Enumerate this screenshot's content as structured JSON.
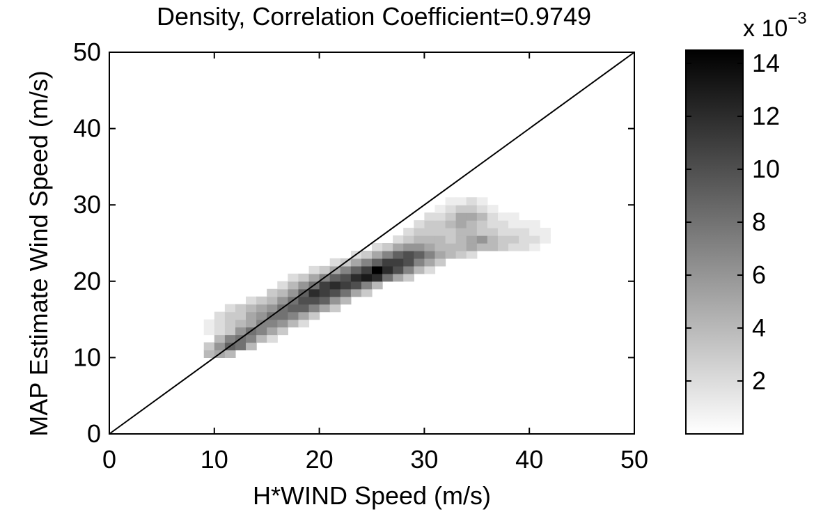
{
  "chart_data": {
    "type": "heatmap",
    "title": "Density, Correlation Coefficient=0.9749",
    "xlabel": "H*WIND Speed (m/s)",
    "ylabel": "MAP Estimate Wind Speed (m/s)",
    "xlim": [
      0,
      50
    ],
    "ylim": [
      0,
      50
    ],
    "xticks": [
      "0",
      "10",
      "20",
      "30",
      "40",
      "50"
    ],
    "yticks": [
      "0",
      "10",
      "20",
      "30",
      "40",
      "50"
    ],
    "reference_line": {
      "x": [
        0,
        50
      ],
      "y": [
        0,
        50
      ]
    },
    "colorbar": {
      "colormap": "gray-reversed",
      "min": 0,
      "max": 14.5,
      "ticks": [
        "2",
        "4",
        "6",
        "8",
        "10",
        "12",
        "14"
      ],
      "multiplier_text": "x 10",
      "multiplier_exponent": "−3"
    },
    "bin_size": 1,
    "cells": [
      [
        9,
        10,
        4
      ],
      [
        10,
        10,
        5
      ],
      [
        11,
        10,
        4
      ],
      [
        9,
        11,
        3
      ],
      [
        10,
        11,
        6
      ],
      [
        11,
        11,
        9
      ],
      [
        12,
        11,
        8
      ],
      [
        13,
        11,
        4
      ],
      [
        10,
        12,
        4
      ],
      [
        11,
        12,
        7
      ],
      [
        12,
        12,
        8
      ],
      [
        13,
        12,
        7
      ],
      [
        14,
        12,
        4
      ],
      [
        15,
        12,
        2
      ],
      [
        9,
        13,
        1
      ],
      [
        10,
        13,
        2
      ],
      [
        11,
        13,
        3
      ],
      [
        12,
        13,
        6
      ],
      [
        13,
        13,
        8
      ],
      [
        14,
        13,
        7
      ],
      [
        15,
        13,
        5
      ],
      [
        16,
        13,
        3
      ],
      [
        9,
        14,
        1
      ],
      [
        10,
        14,
        2
      ],
      [
        11,
        14,
        3
      ],
      [
        12,
        14,
        4
      ],
      [
        13,
        14,
        5
      ],
      [
        14,
        14,
        7
      ],
      [
        15,
        14,
        7
      ],
      [
        16,
        14,
        6
      ],
      [
        17,
        14,
        4
      ],
      [
        18,
        14,
        2
      ],
      [
        10,
        15,
        2
      ],
      [
        11,
        15,
        3
      ],
      [
        12,
        15,
        3
      ],
      [
        13,
        15,
        5
      ],
      [
        14,
        15,
        6
      ],
      [
        15,
        15,
        8
      ],
      [
        16,
        15,
        8
      ],
      [
        17,
        15,
        7
      ],
      [
        18,
        15,
        5
      ],
      [
        19,
        15,
        3
      ],
      [
        11,
        16,
        2
      ],
      [
        12,
        16,
        3
      ],
      [
        13,
        16,
        4
      ],
      [
        14,
        16,
        5
      ],
      [
        15,
        16,
        6
      ],
      [
        16,
        16,
        8
      ],
      [
        17,
        16,
        9
      ],
      [
        18,
        16,
        9
      ],
      [
        19,
        16,
        7
      ],
      [
        20,
        16,
        5
      ],
      [
        21,
        16,
        3
      ],
      [
        13,
        17,
        2
      ],
      [
        14,
        17,
        3
      ],
      [
        15,
        17,
        4
      ],
      [
        16,
        17,
        6
      ],
      [
        17,
        17,
        8
      ],
      [
        18,
        17,
        10
      ],
      [
        19,
        17,
        10
      ],
      [
        20,
        17,
        9
      ],
      [
        21,
        17,
        6
      ],
      [
        22,
        17,
        4
      ],
      [
        15,
        18,
        3
      ],
      [
        16,
        18,
        4
      ],
      [
        17,
        18,
        6
      ],
      [
        18,
        18,
        9
      ],
      [
        19,
        18,
        12
      ],
      [
        20,
        18,
        11
      ],
      [
        21,
        18,
        10
      ],
      [
        22,
        18,
        8
      ],
      [
        23,
        18,
        5
      ],
      [
        24,
        18,
        3
      ],
      [
        16,
        19,
        2
      ],
      [
        17,
        19,
        4
      ],
      [
        18,
        19,
        6
      ],
      [
        19,
        19,
        8
      ],
      [
        20,
        19,
        11
      ],
      [
        21,
        19,
        12
      ],
      [
        22,
        19,
        11
      ],
      [
        23,
        19,
        10
      ],
      [
        24,
        19,
        7
      ],
      [
        25,
        19,
        4
      ],
      [
        17,
        20,
        2
      ],
      [
        18,
        20,
        3
      ],
      [
        19,
        20,
        5
      ],
      [
        20,
        20,
        7
      ],
      [
        21,
        20,
        9
      ],
      [
        22,
        20,
        10
      ],
      [
        23,
        20,
        12
      ],
      [
        24,
        20,
        13
      ],
      [
        25,
        20,
        12
      ],
      [
        26,
        20,
        8
      ],
      [
        27,
        20,
        5
      ],
      [
        28,
        20,
        3
      ],
      [
        19,
        21,
        2
      ],
      [
        20,
        21,
        3
      ],
      [
        21,
        21,
        5
      ],
      [
        22,
        21,
        7
      ],
      [
        23,
        21,
        9
      ],
      [
        24,
        21,
        11
      ],
      [
        25,
        21,
        14.5
      ],
      [
        26,
        21,
        12
      ],
      [
        27,
        21,
        10
      ],
      [
        28,
        21,
        7
      ],
      [
        29,
        21,
        4
      ],
      [
        30,
        21,
        2
      ],
      [
        21,
        22,
        2
      ],
      [
        22,
        22,
        3
      ],
      [
        23,
        22,
        5
      ],
      [
        24,
        22,
        7
      ],
      [
        25,
        22,
        9
      ],
      [
        26,
        22,
        11
      ],
      [
        27,
        22,
        11
      ],
      [
        28,
        22,
        10
      ],
      [
        29,
        22,
        7
      ],
      [
        30,
        22,
        5
      ],
      [
        31,
        22,
        3
      ],
      [
        23,
        23,
        2
      ],
      [
        24,
        23,
        3
      ],
      [
        25,
        23,
        5
      ],
      [
        26,
        23,
        7
      ],
      [
        27,
        23,
        9
      ],
      [
        28,
        23,
        10
      ],
      [
        29,
        23,
        9
      ],
      [
        30,
        23,
        7
      ],
      [
        31,
        23,
        5
      ],
      [
        32,
        23,
        4
      ],
      [
        33,
        23,
        3
      ],
      [
        34,
        23,
        2
      ],
      [
        25,
        24,
        2
      ],
      [
        26,
        24,
        3
      ],
      [
        27,
        24,
        5
      ],
      [
        28,
        24,
        6
      ],
      [
        29,
        24,
        6
      ],
      [
        30,
        24,
        5
      ],
      [
        31,
        24,
        4
      ],
      [
        32,
        24,
        4
      ],
      [
        33,
        24,
        4
      ],
      [
        34,
        24,
        5
      ],
      [
        35,
        24,
        4
      ],
      [
        36,
        24,
        4
      ],
      [
        37,
        24,
        3
      ],
      [
        38,
        24,
        2
      ],
      [
        39,
        24,
        2
      ],
      [
        40,
        24,
        1
      ],
      [
        27,
        25,
        2
      ],
      [
        28,
        25,
        3
      ],
      [
        29,
        25,
        4
      ],
      [
        30,
        25,
        4
      ],
      [
        31,
        25,
        4
      ],
      [
        32,
        25,
        3
      ],
      [
        33,
        25,
        4
      ],
      [
        34,
        25,
        5
      ],
      [
        35,
        25,
        6
      ],
      [
        36,
        25,
        4
      ],
      [
        37,
        25,
        3
      ],
      [
        38,
        25,
        3
      ],
      [
        39,
        25,
        2
      ],
      [
        40,
        25,
        2
      ],
      [
        41,
        25,
        1
      ],
      [
        28,
        26,
        2
      ],
      [
        29,
        26,
        3
      ],
      [
        30,
        26,
        3
      ],
      [
        31,
        26,
        3
      ],
      [
        32,
        26,
        3
      ],
      [
        33,
        26,
        4
      ],
      [
        34,
        26,
        4
      ],
      [
        35,
        26,
        3
      ],
      [
        36,
        26,
        3
      ],
      [
        37,
        26,
        2
      ],
      [
        38,
        26,
        2
      ],
      [
        39,
        26,
        2
      ],
      [
        40,
        26,
        1
      ],
      [
        41,
        26,
        1
      ],
      [
        29,
        27,
        2
      ],
      [
        30,
        27,
        3
      ],
      [
        31,
        27,
        3
      ],
      [
        32,
        27,
        4
      ],
      [
        33,
        27,
        5
      ],
      [
        34,
        27,
        4
      ],
      [
        35,
        27,
        3
      ],
      [
        36,
        27,
        2
      ],
      [
        37,
        27,
        2
      ],
      [
        38,
        27,
        1
      ],
      [
        39,
        27,
        1
      ],
      [
        40,
        27,
        1
      ],
      [
        30,
        28,
        2
      ],
      [
        31,
        28,
        2
      ],
      [
        32,
        28,
        3
      ],
      [
        33,
        28,
        5
      ],
      [
        34,
        28,
        5
      ],
      [
        35,
        28,
        4
      ],
      [
        36,
        28,
        2
      ],
      [
        37,
        28,
        1
      ],
      [
        38,
        28,
        1
      ],
      [
        31,
        29,
        1
      ],
      [
        32,
        29,
        2
      ],
      [
        33,
        29,
        3
      ],
      [
        34,
        29,
        3
      ],
      [
        35,
        29,
        2
      ],
      [
        36,
        29,
        1
      ],
      [
        32,
        30,
        1
      ],
      [
        33,
        30,
        1
      ],
      [
        34,
        30,
        2
      ],
      [
        35,
        30,
        1
      ]
    ]
  }
}
